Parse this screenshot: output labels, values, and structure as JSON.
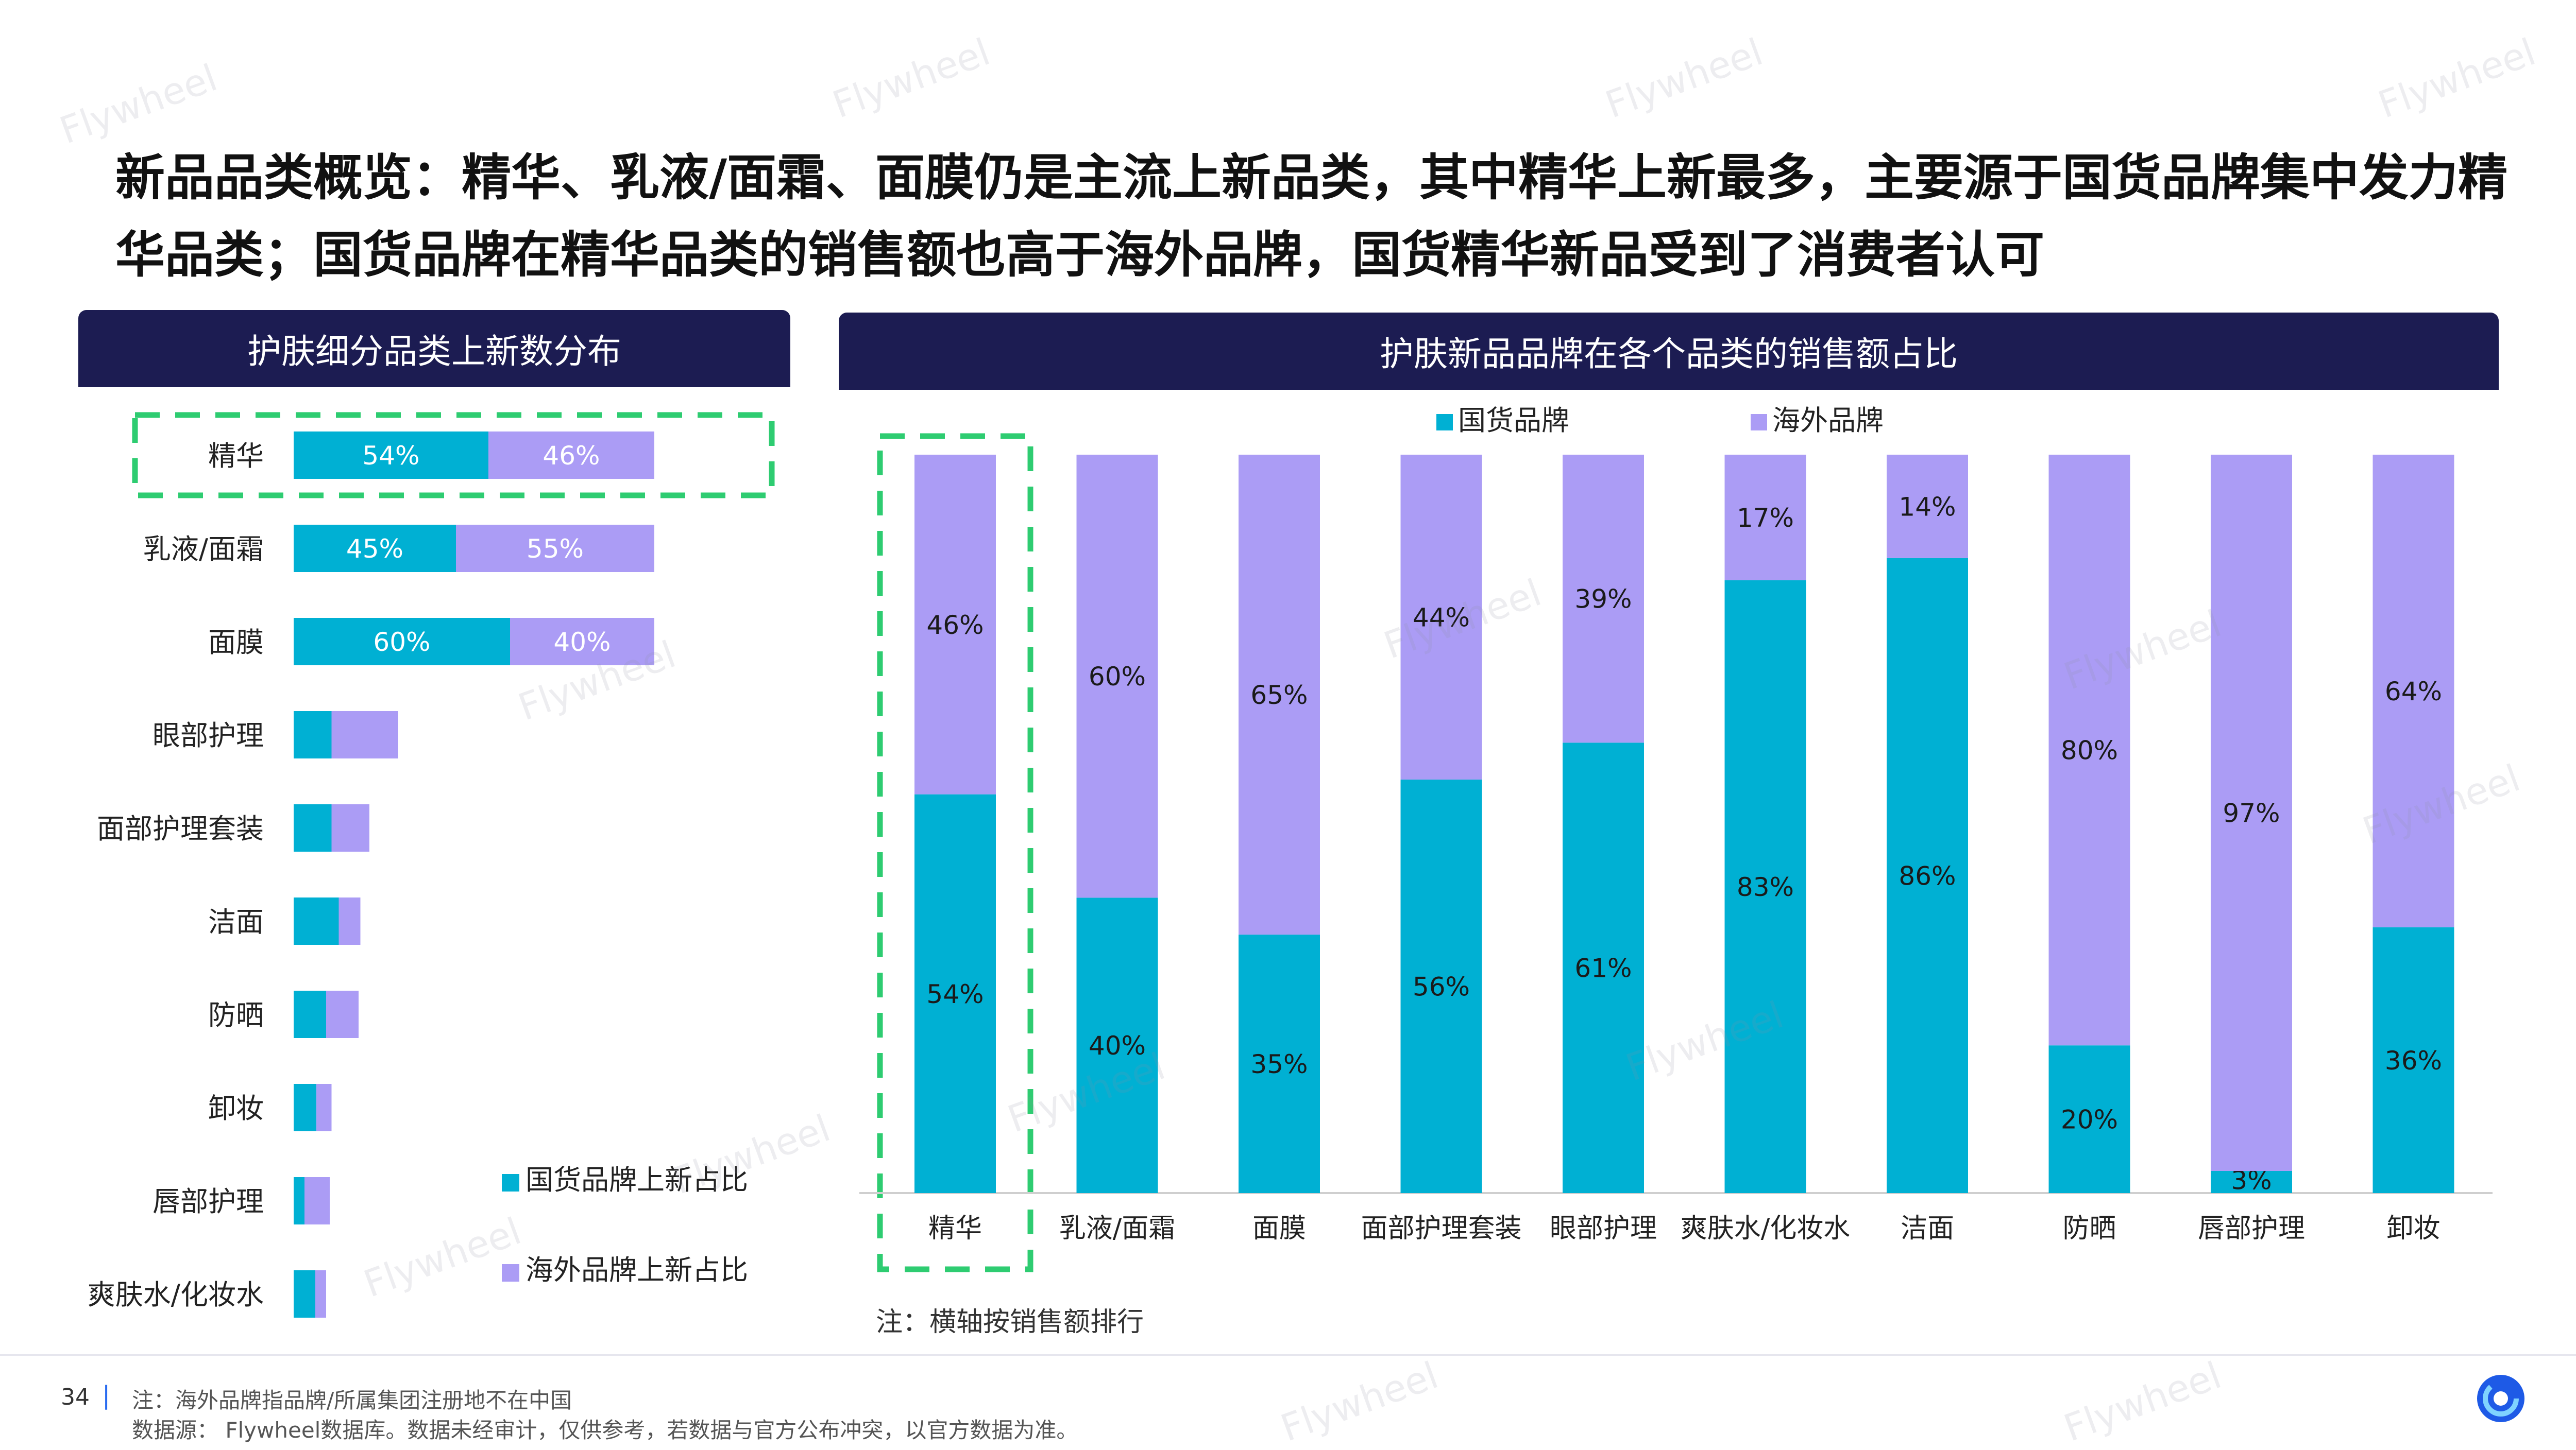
{
  "title": "新品品类概览：精华、乳液/面霜、面膜仍是主流上新品类，其中精华上新最多，主要源于国货品牌集中发力精华品类；国货品牌在精华品类的销售额也高于海外品牌，国货精华新品受到了消费者认可",
  "left_panel": {
    "header": "护肤细分品类上新数分布"
  },
  "right_panel": {
    "header": "护肤新品品牌在各个品类的销售额占比",
    "note": "注：横轴按销售额排行"
  },
  "footer": {
    "page_number": "34",
    "separator": "|",
    "note_line1": "注：海外品牌指品牌/所属集团注册地不在中国",
    "note_line2": "数据源： Flywheel数据库。数据未经审计，仅供参考，若数据与官方公布冲突，以官方数据为准。"
  },
  "watermark": "Flywheel",
  "colors": {
    "domestic": "#00b0d3",
    "overseas": "#ab9cf5",
    "header_bg": "#1c1c52",
    "highlight_border": "#2ecc71"
  },
  "chart_data": [
    {
      "type": "bar",
      "orientation": "horizontal",
      "stacked": true,
      "title": "护肤细分品类上新数分布",
      "categories": [
        "精华",
        "乳液/面霜",
        "面膜",
        "眼部护理",
        "面部护理套装",
        "洁面",
        "防晒",
        "卸妆",
        "唇部护理",
        "爽肤水/化妆水"
      ],
      "series": [
        {
          "name": "国货品牌上新占比",
          "values": [
            54,
            45,
            60,
            10.5,
            10.5,
            12.5,
            9,
            6.3,
            3,
            6
          ],
          "labels": [
            "54%",
            "45%",
            "60%",
            "",
            "",
            "",
            "",
            "",
            "",
            ""
          ]
        },
        {
          "name": "海外品牌上新占比",
          "values": [
            46,
            55,
            40,
            18.5,
            10.5,
            6,
            9,
            4.2,
            7,
            3
          ],
          "labels": [
            "46%",
            "55%",
            "40%",
            "",
            "",
            "",
            "",
            "",
            "",
            ""
          ]
        }
      ],
      "value_unit": "relative new-product count (largest category = 100)",
      "highlight": "精华",
      "legend": "bottom-right",
      "grid": false
    },
    {
      "type": "bar",
      "orientation": "vertical",
      "stacked": true,
      "percent": true,
      "title": "护肤新品品牌在各个品类的销售额占比",
      "categories": [
        "精华",
        "乳液/面霜",
        "面膜",
        "面部护理套装",
        "眼部护理",
        "爽肤水/化妆水",
        "洁面",
        "防晒",
        "唇部护理",
        "卸妆"
      ],
      "series": [
        {
          "name": "国货品牌",
          "values": [
            54,
            40,
            35,
            56,
            61,
            83,
            86,
            20,
            3,
            36
          ]
        },
        {
          "name": "海外品牌",
          "values": [
            46,
            60,
            65,
            44,
            39,
            17,
            14,
            80,
            97,
            64
          ]
        }
      ],
      "ylim": [
        0,
        100
      ],
      "highlight": "精华",
      "legend": "top",
      "grid": false
    }
  ]
}
